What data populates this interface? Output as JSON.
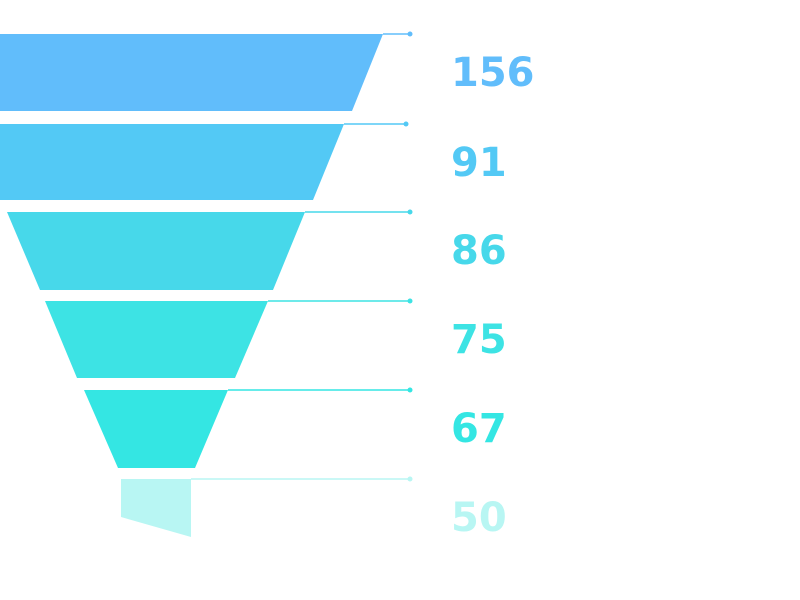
{
  "chart_data": {
    "type": "funnel",
    "values": [
      156,
      91,
      86,
      75,
      67,
      50
    ],
    "colors": [
      "#61bdfb",
      "#53c9f5",
      "#47d8ea",
      "#3de3e4",
      "#34e6e3",
      "#b8f6f3"
    ],
    "grid": false,
    "legend": "none"
  }
}
